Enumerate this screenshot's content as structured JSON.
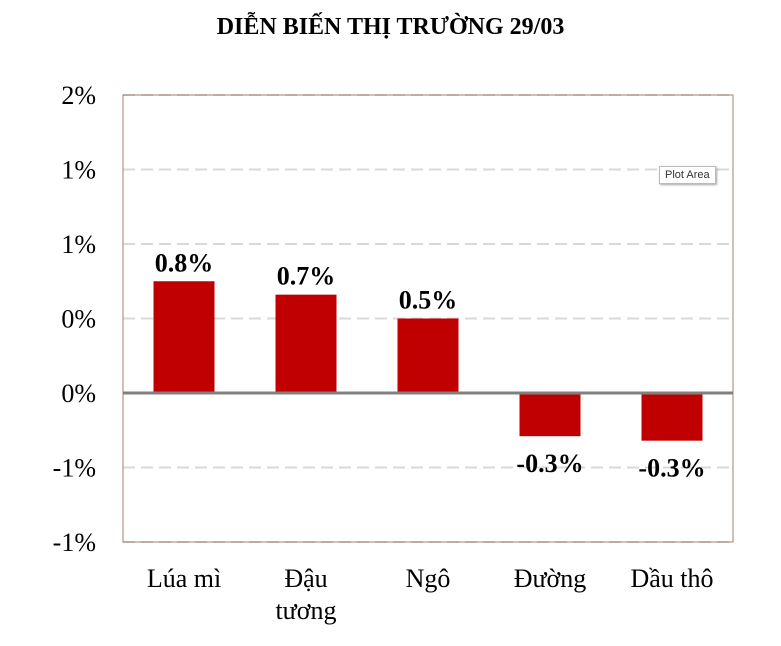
{
  "chart_data": {
    "type": "bar",
    "title": "DIỄN BIẾN THỊ TRƯỜNG 29/03",
    "categories": [
      [
        "Lúa mì"
      ],
      [
        "Đậu",
        "tương"
      ],
      [
        "Ngô"
      ],
      [
        "Đường"
      ],
      [
        "Dầu thô"
      ]
    ],
    "values": [
      0.0075,
      0.0066,
      0.005,
      -0.0029,
      -0.0032
    ],
    "data_labels": [
      "0.8%",
      "0.7%",
      "0.5%",
      "-0.3%",
      "-0.3%"
    ],
    "y_ticks": [
      {
        "value": 0.02,
        "label": "2%"
      },
      {
        "value": 0.015,
        "label": "1%"
      },
      {
        "value": 0.01,
        "label": "1%"
      },
      {
        "value": 0.005,
        "label": "0%"
      },
      {
        "value": 0.0,
        "label": "0%"
      },
      {
        "value": -0.005,
        "label": "-1%"
      },
      {
        "value": -0.01,
        "label": "-1%"
      }
    ],
    "ylim": [
      -0.01,
      0.02
    ],
    "grid": true,
    "bar_color": "#c00000"
  },
  "tooltip": {
    "label": "Plot Area"
  }
}
